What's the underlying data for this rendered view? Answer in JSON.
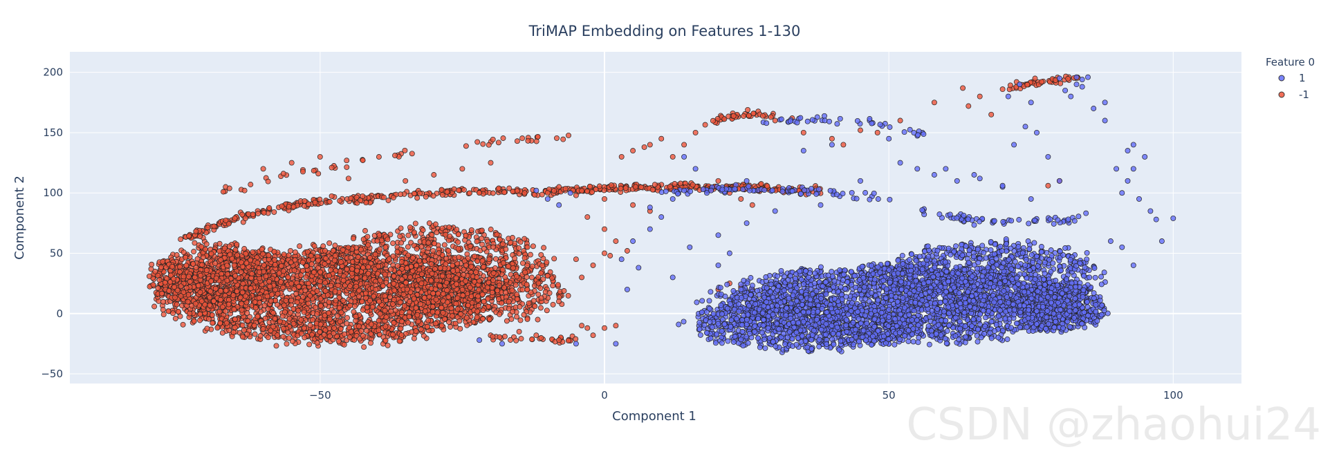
{
  "chart_data": {
    "type": "scatter",
    "title": "TriMAP Embedding on Features 1-130",
    "xlabel": "Component 1",
    "ylabel": "Component 2",
    "xlim": [
      -94,
      112
    ],
    "ylim": [
      -58,
      217
    ],
    "x_ticks": [
      -50,
      0,
      50,
      100
    ],
    "x_tick_labels": [
      "−50",
      "0",
      "50",
      "100"
    ],
    "y_ticks": [
      -50,
      0,
      50,
      100,
      150,
      200
    ],
    "y_tick_labels": [
      "−50",
      "0",
      "50",
      "100",
      "150",
      "200"
    ],
    "grid": true,
    "legend": {
      "title": "Feature 0",
      "placement": "top-right, outside plot"
    },
    "series": [
      {
        "name": "1",
        "color": "#636efa",
        "clusters": [
          {
            "cx": 52,
            "cy": 8,
            "rx": 33,
            "ry": 32,
            "n": 2200
          },
          {
            "cx": 68,
            "cy": 30,
            "rx": 20,
            "ry": 30,
            "n": 900
          },
          {
            "cx": 35,
            "cy": -10,
            "rx": 20,
            "ry": 22,
            "n": 700
          },
          {
            "cx": 80,
            "cy": 5,
            "rx": 8,
            "ry": 20,
            "n": 400
          }
        ],
        "arcs": [
          {
            "x0": 10,
            "y0": 100,
            "x1": 50,
            "y1": 95,
            "bend": 5,
            "n": 80
          },
          {
            "x0": 28,
            "y0": 160,
            "x1": 56,
            "y1": 150,
            "bend": 5,
            "n": 40
          },
          {
            "x0": 55,
            "y0": 85,
            "x1": 85,
            "y1": 80,
            "bend": -6,
            "n": 60
          }
        ],
        "scatter": [
          [
            5,
            60
          ],
          [
            3,
            45
          ],
          [
            8,
            70
          ],
          [
            12,
            30
          ],
          [
            2,
            -25
          ],
          [
            -5,
            -25
          ],
          [
            -18,
            -25
          ],
          [
            -22,
            -22
          ],
          [
            15,
            55
          ],
          [
            20,
            65
          ],
          [
            25,
            75
          ],
          [
            30,
            85
          ],
          [
            38,
            90
          ],
          [
            45,
            110
          ],
          [
            60,
            120
          ],
          [
            65,
            115
          ],
          [
            70,
            105
          ],
          [
            75,
            95
          ],
          [
            78,
            130
          ],
          [
            80,
            110
          ],
          [
            82,
            180
          ],
          [
            84,
            188
          ],
          [
            86,
            170
          ],
          [
            88,
            160
          ],
          [
            75,
            175
          ],
          [
            73,
            190
          ],
          [
            90,
            120
          ],
          [
            92,
            135
          ],
          [
            93,
            140
          ],
          [
            95,
            130
          ],
          [
            94,
            95
          ],
          [
            96,
            85
          ],
          [
            97,
            78
          ],
          [
            98,
            60
          ],
          [
            100,
            79
          ],
          [
            91,
            100
          ],
          [
            92,
            110
          ],
          [
            93,
            120
          ],
          [
            89,
            60
          ],
          [
            91,
            55
          ],
          [
            93,
            40
          ],
          [
            35,
            135
          ],
          [
            40,
            140
          ],
          [
            50,
            145
          ],
          [
            52,
            125
          ],
          [
            55,
            120
          ],
          [
            58,
            115
          ],
          [
            62,
            110
          ],
          [
            66,
            112
          ],
          [
            70,
            106
          ],
          [
            72,
            140
          ],
          [
            74,
            155
          ],
          [
            76,
            150
          ],
          [
            83,
            190
          ],
          [
            81,
            185
          ],
          [
            83,
            196
          ],
          [
            84,
            194
          ],
          [
            85,
            196
          ],
          [
            71,
            180
          ],
          [
            80,
            195
          ],
          [
            88,
            175
          ],
          [
            14,
            130
          ],
          [
            16,
            120
          ],
          [
            25,
            110
          ],
          [
            8,
            88
          ],
          [
            10,
            80
          ],
          [
            12,
            95
          ],
          [
            18,
            100
          ],
          [
            20,
            40
          ],
          [
            22,
            50
          ],
          [
            24,
            20
          ],
          [
            6,
            38
          ],
          [
            4,
            20
          ],
          [
            -8,
            90
          ],
          [
            -6,
            100
          ],
          [
            -12,
            102
          ],
          [
            -10,
            95
          ]
        ]
      },
      {
        "name": "-1",
        "color": "#ef553b",
        "clusters": [
          {
            "cx": -48,
            "cy": 15,
            "rx": 30,
            "ry": 40,
            "n": 2400
          },
          {
            "cx": -68,
            "cy": 30,
            "rx": 12,
            "ry": 28,
            "n": 700
          },
          {
            "cx": -30,
            "cy": 40,
            "rx": 20,
            "ry": 35,
            "n": 700
          },
          {
            "cx": -20,
            "cy": 20,
            "rx": 14,
            "ry": 28,
            "n": 350
          }
        ],
        "arcs": [
          {
            "x0": -75,
            "y0": 60,
            "x1": -40,
            "y1": 95,
            "bend": 10,
            "n": 160
          },
          {
            "x0": -40,
            "y0": 95,
            "x1": -15,
            "y1": 102,
            "bend": 2,
            "n": 80
          },
          {
            "x0": -15,
            "y0": 100,
            "x1": 38,
            "y1": 102,
            "bend": 4,
            "n": 240
          },
          {
            "x0": -68,
            "y0": 100,
            "x1": -5,
            "y1": 148,
            "bend": 8,
            "n": 50
          },
          {
            "x0": 18,
            "y0": 158,
            "x1": 30,
            "y1": 163,
            "bend": 4,
            "n": 40
          },
          {
            "x0": 72,
            "y0": 188,
            "x1": 84,
            "y1": 196,
            "bend": 1,
            "n": 45
          },
          {
            "x0": -20,
            "y0": -20,
            "x1": -5,
            "y1": -22,
            "bend": 0,
            "n": 30
          }
        ],
        "scatter": [
          [
            -10,
            100
          ],
          [
            -8,
            105
          ],
          [
            -5,
            98
          ],
          [
            0,
            95
          ],
          [
            5,
            90
          ],
          [
            8,
            85
          ],
          [
            -3,
            80
          ],
          [
            0,
            70
          ],
          [
            2,
            60
          ],
          [
            4,
            52
          ],
          [
            0,
            50
          ],
          [
            -2,
            40
          ],
          [
            1,
            48
          ],
          [
            -5,
            45
          ],
          [
            -4,
            30
          ],
          [
            0,
            -12
          ],
          [
            -3,
            -12
          ],
          [
            -4,
            -10
          ],
          [
            2,
            -10
          ],
          [
            3,
            130
          ],
          [
            5,
            135
          ],
          [
            7,
            138
          ],
          [
            8,
            140
          ],
          [
            10,
            145
          ],
          [
            12,
            130
          ],
          [
            14,
            140
          ],
          [
            16,
            150
          ],
          [
            20,
            110
          ],
          [
            22,
            100
          ],
          [
            24,
            95
          ],
          [
            26,
            90
          ],
          [
            30,
            160
          ],
          [
            33,
            162
          ],
          [
            35,
            150
          ],
          [
            40,
            145
          ],
          [
            42,
            140
          ],
          [
            45,
            152
          ],
          [
            48,
            150
          ],
          [
            52,
            160
          ],
          [
            58,
            175
          ],
          [
            63,
            187
          ],
          [
            64,
            172
          ],
          [
            66,
            180
          ],
          [
            68,
            165
          ],
          [
            70,
            186
          ],
          [
            78,
            106
          ],
          [
            80,
            110
          ],
          [
            22,
            25
          ],
          [
            24,
            22
          ],
          [
            26,
            20
          ],
          [
            20,
            20
          ],
          [
            -15,
            -15
          ],
          [
            -12,
            -18
          ],
          [
            -8,
            -22
          ],
          [
            -2,
            -18
          ],
          [
            -60,
            120
          ],
          [
            -55,
            125
          ],
          [
            -50,
            130
          ],
          [
            -45,
            112
          ],
          [
            -35,
            110
          ],
          [
            -30,
            115
          ],
          [
            -25,
            120
          ],
          [
            -20,
            125
          ]
        ]
      }
    ],
    "watermark": "CSDN @zhaohui24"
  }
}
